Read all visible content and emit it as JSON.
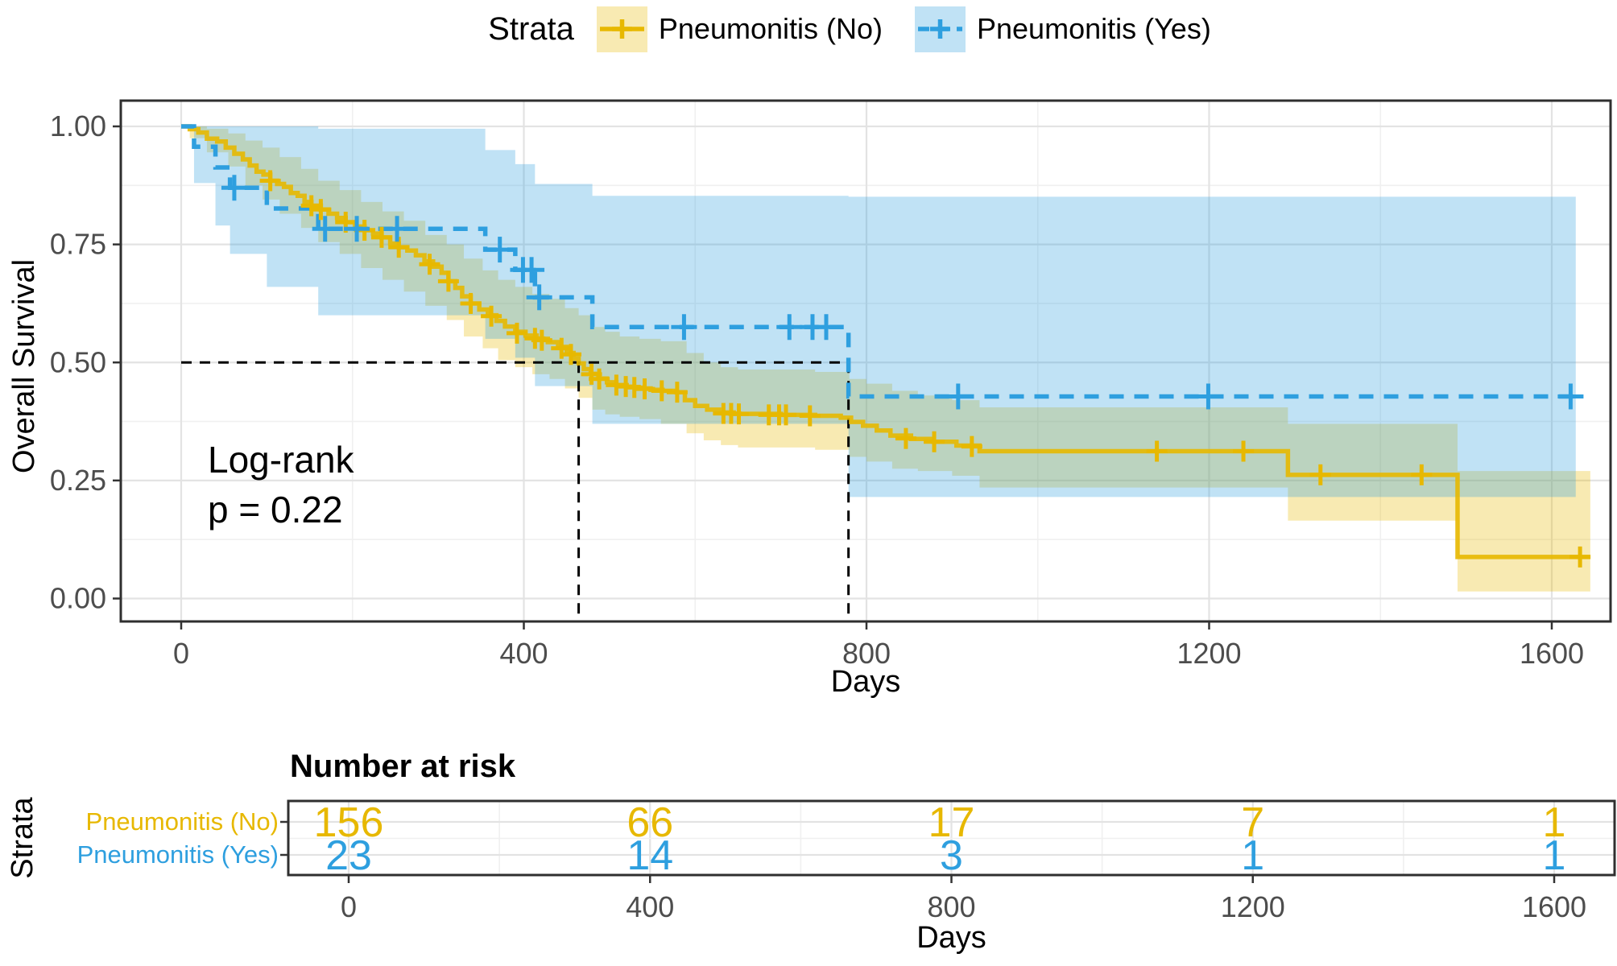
{
  "chart_data": {
    "type": "line",
    "subtype": "kaplan-meier-survival",
    "title": "",
    "legend_title": "Strata",
    "legend_position": "top",
    "xlabel": "Days",
    "ylabel": "Overall Survival",
    "xlim": [
      0,
      1600
    ],
    "xticks": [
      0,
      400,
      800,
      1200,
      1600
    ],
    "xminor": [
      200,
      600,
      1000,
      1400
    ],
    "ylim": [
      0,
      1
    ],
    "yticks": [
      0,
      0.25,
      0.5,
      0.75,
      1
    ],
    "ytick_labels": [
      "0.00",
      "0.25",
      "0.50",
      "0.75",
      "1.00"
    ],
    "yminor": [
      0.125,
      0.375,
      0.625,
      0.875
    ],
    "grid": "major+minor",
    "annotation": {
      "text": [
        "Log-rank",
        "p = 0.22"
      ],
      "x_day": 55,
      "y_surv": 0.3
    },
    "median_survival": {
      "horizontal_at": 0.5,
      "lines": [
        {
          "group": "Pneumonitis (No)",
          "days": 464
        },
        {
          "group": "Pneumonitis (Yes)",
          "days": 779
        }
      ]
    },
    "colors": {
      "no": "#E7B800",
      "yes": "#2E9FDF"
    },
    "series": [
      {
        "name": "Pneumonitis (No)",
        "color": "#E7B800",
        "band_fill": "#E7B800",
        "linestyle": "solid",
        "end_day": 1645,
        "steps": [
          [
            0,
            1.0
          ],
          [
            10,
            0.994
          ],
          [
            20,
            0.987
          ],
          [
            30,
            0.974
          ],
          [
            42,
            0.968
          ],
          [
            52,
            0.955
          ],
          [
            62,
            0.942
          ],
          [
            72,
            0.93
          ],
          [
            80,
            0.917
          ],
          [
            88,
            0.904
          ],
          [
            96,
            0.898
          ],
          [
            104,
            0.885
          ],
          [
            112,
            0.878
          ],
          [
            120,
            0.872
          ],
          [
            128,
            0.859
          ],
          [
            136,
            0.853
          ],
          [
            144,
            0.84
          ],
          [
            152,
            0.832
          ],
          [
            163,
            0.824
          ],
          [
            172,
            0.815
          ],
          [
            182,
            0.806
          ],
          [
            192,
            0.797
          ],
          [
            203,
            0.788
          ],
          [
            214,
            0.78
          ],
          [
            224,
            0.773
          ],
          [
            234,
            0.765
          ],
          [
            244,
            0.752
          ],
          [
            254,
            0.744
          ],
          [
            264,
            0.737
          ],
          [
            274,
            0.727
          ],
          [
            284,
            0.714
          ],
          [
            294,
            0.703
          ],
          [
            304,
            0.69
          ],
          [
            312,
            0.672
          ],
          [
            320,
            0.658
          ],
          [
            328,
            0.64
          ],
          [
            338,
            0.625
          ],
          [
            348,
            0.612
          ],
          [
            358,
            0.6
          ],
          [
            368,
            0.588
          ],
          [
            378,
            0.576
          ],
          [
            390,
            0.565
          ],
          [
            402,
            0.557
          ],
          [
            415,
            0.55
          ],
          [
            428,
            0.543
          ],
          [
            440,
            0.533
          ],
          [
            450,
            0.52
          ],
          [
            458,
            0.508
          ],
          [
            464,
            0.498
          ],
          [
            470,
            0.486
          ],
          [
            478,
            0.476
          ],
          [
            487,
            0.466
          ],
          [
            497,
            0.458
          ],
          [
            508,
            0.452
          ],
          [
            520,
            0.448
          ],
          [
            534,
            0.445
          ],
          [
            548,
            0.442
          ],
          [
            562,
            0.44
          ],
          [
            578,
            0.437
          ],
          [
            588,
            0.42
          ],
          [
            600,
            0.408
          ],
          [
            614,
            0.4
          ],
          [
            628,
            0.394
          ],
          [
            645,
            0.391
          ],
          [
            700,
            0.389
          ],
          [
            740,
            0.387
          ],
          [
            770,
            0.383
          ],
          [
            782,
            0.374
          ],
          [
            796,
            0.366
          ],
          [
            812,
            0.356
          ],
          [
            828,
            0.345
          ],
          [
            852,
            0.338
          ],
          [
            878,
            0.332
          ],
          [
            905,
            0.324
          ],
          [
            932,
            0.312
          ],
          [
            1292,
            0.262
          ],
          [
            1490,
            0.088
          ]
        ],
        "censors": [
          [
            104,
            0.885
          ],
          [
            152,
            0.832
          ],
          [
            163,
            0.824
          ],
          [
            192,
            0.797
          ],
          [
            214,
            0.78
          ],
          [
            234,
            0.765
          ],
          [
            254,
            0.744
          ],
          [
            290,
            0.708
          ],
          [
            312,
            0.672
          ],
          [
            338,
            0.625
          ],
          [
            362,
            0.598
          ],
          [
            392,
            0.562
          ],
          [
            413,
            0.551
          ],
          [
            421,
            0.547
          ],
          [
            444,
            0.53
          ],
          [
            455,
            0.517
          ],
          [
            479,
            0.475
          ],
          [
            488,
            0.465
          ],
          [
            508,
            0.452
          ],
          [
            519,
            0.449
          ],
          [
            529,
            0.447
          ],
          [
            541,
            0.444
          ],
          [
            561,
            0.44
          ],
          [
            579,
            0.437
          ],
          [
            633,
            0.392
          ],
          [
            642,
            0.392
          ],
          [
            651,
            0.391
          ],
          [
            686,
            0.389
          ],
          [
            698,
            0.389
          ],
          [
            706,
            0.389
          ],
          [
            734,
            0.387
          ],
          [
            846,
            0.339
          ],
          [
            879,
            0.332
          ],
          [
            923,
            0.322
          ],
          [
            1139,
            0.312
          ],
          [
            1240,
            0.312
          ],
          [
            1330,
            0.262
          ],
          [
            1448,
            0.262
          ],
          [
            1633,
            0.088
          ]
        ],
        "band": [
          [
            0,
            1.0,
            1.0
          ],
          [
            10,
            0.975,
            1.0
          ],
          [
            30,
            0.945,
            0.995
          ],
          [
            55,
            0.915,
            0.985
          ],
          [
            75,
            0.875,
            0.97
          ],
          [
            95,
            0.845,
            0.955
          ],
          [
            115,
            0.815,
            0.935
          ],
          [
            140,
            0.785,
            0.91
          ],
          [
            160,
            0.755,
            0.885
          ],
          [
            185,
            0.73,
            0.865
          ],
          [
            210,
            0.7,
            0.84
          ],
          [
            235,
            0.675,
            0.82
          ],
          [
            260,
            0.65,
            0.8
          ],
          [
            285,
            0.62,
            0.77
          ],
          [
            310,
            0.59,
            0.75
          ],
          [
            330,
            0.555,
            0.72
          ],
          [
            352,
            0.53,
            0.695
          ],
          [
            370,
            0.505,
            0.675
          ],
          [
            390,
            0.49,
            0.66
          ],
          [
            410,
            0.475,
            0.645
          ],
          [
            430,
            0.465,
            0.635
          ],
          [
            448,
            0.445,
            0.615
          ],
          [
            464,
            0.425,
            0.6
          ],
          [
            480,
            0.4,
            0.575
          ],
          [
            495,
            0.39,
            0.565
          ],
          [
            512,
            0.385,
            0.555
          ],
          [
            535,
            0.38,
            0.55
          ],
          [
            560,
            0.37,
            0.545
          ],
          [
            590,
            0.35,
            0.52
          ],
          [
            610,
            0.335,
            0.5
          ],
          [
            630,
            0.325,
            0.49
          ],
          [
            650,
            0.32,
            0.485
          ],
          [
            740,
            0.315,
            0.48
          ],
          [
            780,
            0.3,
            0.465
          ],
          [
            800,
            0.29,
            0.455
          ],
          [
            830,
            0.275,
            0.44
          ],
          [
            860,
            0.27,
            0.43
          ],
          [
            900,
            0.26,
            0.42
          ],
          [
            932,
            0.235,
            0.405
          ],
          [
            1292,
            0.165,
            0.37
          ],
          [
            1490,
            0.015,
            0.27
          ]
        ]
      },
      {
        "name": "Pneumonitis (Yes)",
        "color": "#2E9FDF",
        "band_fill": "#2E9FDF",
        "linestyle": "dashed",
        "end_day": 1628,
        "steps": [
          [
            0,
            1.0
          ],
          [
            15,
            0.957
          ],
          [
            40,
            0.913
          ],
          [
            57,
            0.87
          ],
          [
            100,
            0.826
          ],
          [
            160,
            0.783
          ],
          [
            355,
            0.739
          ],
          [
            390,
            0.696
          ],
          [
            413,
            0.638
          ],
          [
            480,
            0.575
          ],
          [
            779,
            0.428
          ]
        ],
        "censors": [
          [
            62,
            0.87
          ],
          [
            168,
            0.783
          ],
          [
            205,
            0.783
          ],
          [
            252,
            0.783
          ],
          [
            372,
            0.739
          ],
          [
            399,
            0.696
          ],
          [
            409,
            0.696
          ],
          [
            418,
            0.638
          ],
          [
            587,
            0.575
          ],
          [
            710,
            0.575
          ],
          [
            737,
            0.575
          ],
          [
            753,
            0.575
          ],
          [
            907,
            0.428
          ],
          [
            1199,
            0.428
          ],
          [
            1622,
            0.428
          ]
        ],
        "band": [
          [
            0,
            1.0,
            1.0
          ],
          [
            15,
            0.88,
            1.0
          ],
          [
            40,
            0.79,
            1.0
          ],
          [
            57,
            0.73,
            1.0
          ],
          [
            100,
            0.66,
            1.0
          ],
          [
            160,
            0.6,
            0.995
          ],
          [
            355,
            0.55,
            0.95
          ],
          [
            390,
            0.51,
            0.92
          ],
          [
            413,
            0.45,
            0.878
          ],
          [
            480,
            0.37,
            0.853
          ],
          [
            779,
            0.215,
            0.851
          ]
        ]
      }
    ],
    "risk_table": {
      "title": "Number at risk",
      "ylabel": "Strata",
      "xlabel": "Days",
      "days": [
        0,
        400,
        800,
        1200,
        1600
      ],
      "rows": [
        {
          "label": "Pneumonitis (No)",
          "color": "#E7B800",
          "values": [
            156,
            66,
            17,
            7,
            1
          ]
        },
        {
          "label": "Pneumonitis (Yes)",
          "color": "#2E9FDF",
          "values": [
            23,
            14,
            3,
            1,
            1
          ]
        }
      ]
    }
  }
}
